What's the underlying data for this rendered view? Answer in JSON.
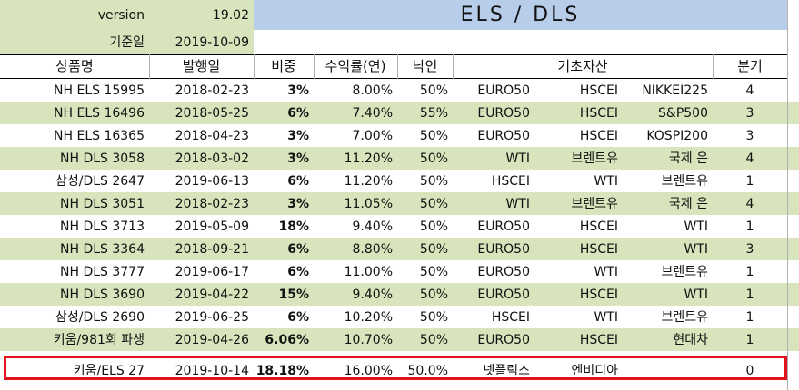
{
  "meta": {
    "version_label": "version",
    "version_value": "19.02",
    "date_label": "기준일",
    "date_value": "2019-10-09",
    "sheet_title": "ELS / DLS"
  },
  "headers": {
    "name": "상품명",
    "issue_date": "발행일",
    "weight": "비중",
    "return_rate": "수익률(연)",
    "knock_in": "낙인",
    "underlying": "기초자산",
    "quarter": "분기"
  },
  "rows": [
    {
      "name": "NH ELS 15995",
      "issue_date": "2018-02-23",
      "weight": "3%",
      "return_rate": "8.00%",
      "knock_in": "50%",
      "u1": "EURO50",
      "u2": "HSCEI",
      "u3": "NIKKEI225",
      "quarter": "4"
    },
    {
      "name": "NH ELS 16496",
      "issue_date": "2018-05-25",
      "weight": "6%",
      "return_rate": "7.40%",
      "knock_in": "55%",
      "u1": "EURO50",
      "u2": "HSCEI",
      "u3": "S&P500",
      "quarter": "3"
    },
    {
      "name": "NH ELS 16365",
      "issue_date": "2018-04-23",
      "weight": "3%",
      "return_rate": "7.00%",
      "knock_in": "50%",
      "u1": "EURO50",
      "u2": "HSCEI",
      "u3": "KOSPI200",
      "quarter": "3"
    },
    {
      "name": "NH DLS 3058",
      "issue_date": "2018-03-02",
      "weight": "3%",
      "return_rate": "11.20%",
      "knock_in": "50%",
      "u1": "WTI",
      "u2": "브렌트유",
      "u3": "국제 은",
      "quarter": "4"
    },
    {
      "name": "삼성/DLS 2647",
      "issue_date": "2019-06-13",
      "weight": "6%",
      "return_rate": "11.20%",
      "knock_in": "50%",
      "u1": "HSCEI",
      "u2": "WTI",
      "u3": "브렌트유",
      "quarter": "1"
    },
    {
      "name": "NH DLS 3051",
      "issue_date": "2018-02-23",
      "weight": "3%",
      "return_rate": "11.05%",
      "knock_in": "50%",
      "u1": "WTI",
      "u2": "브렌트유",
      "u3": "국제 은",
      "quarter": "4"
    },
    {
      "name": "NH DLS 3713",
      "issue_date": "2019-05-09",
      "weight": "18%",
      "return_rate": "9.40%",
      "knock_in": "50%",
      "u1": "EURO50",
      "u2": "HSCEI",
      "u3": "WTI",
      "quarter": "1"
    },
    {
      "name": "NH DLS 3364",
      "issue_date": "2018-09-21",
      "weight": "6%",
      "return_rate": "8.80%",
      "knock_in": "50%",
      "u1": "EURO50",
      "u2": "HSCEI",
      "u3": "WTI",
      "quarter": "3"
    },
    {
      "name": "NH DLS 3777",
      "issue_date": "2019-06-17",
      "weight": "6%",
      "return_rate": "11.00%",
      "knock_in": "50%",
      "u1": "EURO50",
      "u2": "WTI",
      "u3": "브렌트유",
      "quarter": "1"
    },
    {
      "name": "NH DLS 3690",
      "issue_date": "2019-04-22",
      "weight": "15%",
      "return_rate": "9.40%",
      "knock_in": "50%",
      "u1": "EURO50",
      "u2": "HSCEI",
      "u3": "WTI",
      "quarter": "1"
    },
    {
      "name": "삼성/DLS 2690",
      "issue_date": "2019-06-25",
      "weight": "6%",
      "return_rate": "10.20%",
      "knock_in": "50%",
      "u1": "HSCEI",
      "u2": "WTI",
      "u3": "브렌트유",
      "quarter": "1"
    },
    {
      "name": "키움/981회 파생",
      "issue_date": "2019-04-26",
      "weight": "6.06%",
      "return_rate": "10.70%",
      "knock_in": "50%",
      "u1": "EURO50",
      "u2": "HSCEI",
      "u3": "현대차",
      "quarter": "1"
    },
    {
      "name": "키움/ELS 27",
      "issue_date": "2019-10-14",
      "weight": "18.18%",
      "return_rate": "16.00%",
      "knock_in": "50.0%",
      "u1": "넷플릭스",
      "u2": "엔비디아",
      "u3": "",
      "quarter": "0"
    }
  ],
  "colors": {
    "green_band": "#d8e4bc",
    "title_blue": "#b7cdea",
    "highlight_red": "#e0141c"
  }
}
